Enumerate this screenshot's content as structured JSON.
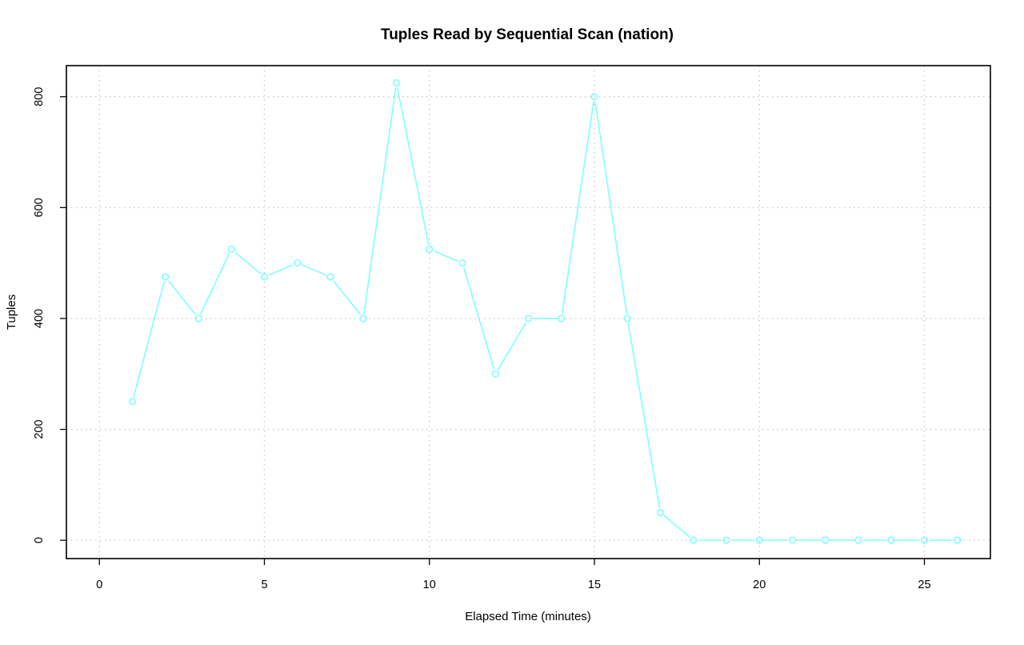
{
  "chart_data": {
    "type": "line",
    "title": "Tuples Read by Sequential Scan (nation)",
    "xlabel": "Elapsed Time (minutes)",
    "ylabel": "Tuples",
    "xlim": [
      -1,
      27
    ],
    "ylim": [
      -33,
      856
    ],
    "xticks": [
      0,
      5,
      10,
      15,
      20,
      25
    ],
    "yticks": [
      0,
      200,
      400,
      600,
      800
    ],
    "grid": true,
    "legend": "none",
    "series": [
      {
        "color": "#7fffff",
        "marker": "open-circle",
        "x": [
          1,
          2,
          3,
          4,
          5,
          6,
          7,
          8,
          9,
          10,
          11,
          12,
          13,
          14,
          15,
          16,
          17,
          18,
          19,
          20,
          21,
          22,
          23,
          24,
          25,
          26
        ],
        "values": [
          250,
          475,
          400,
          525,
          475,
          500,
          475,
          400,
          825,
          525,
          500,
          300,
          400,
          400,
          800,
          400,
          50,
          0,
          0,
          0,
          0,
          0,
          0,
          0,
          0,
          0
        ]
      }
    ]
  }
}
